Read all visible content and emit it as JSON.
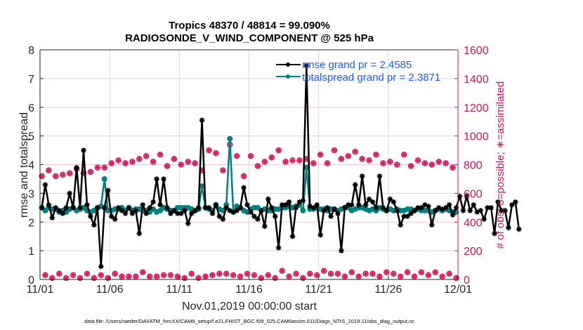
{
  "chart_data": {
    "type": "line",
    "title": "Tropics 48370 / 48814 = 99.090%",
    "subtitle": "RADIOSONDE_V_WIND_COMPONENT @ 525 hPa",
    "xlabel": "Nov.01,2019 00:00:00 start",
    "ylabel": "rmse and totalspread",
    "ylabel_right": "# of obs: o=possible; ∗=assimilated",
    "footnote": "data file: /Users/raeder/DAI/ATM_forcXX/CAM6_setup/f.e21.FHIST_BGC.f09_025.CAM6assim.011/Diags_NTrS_2019-11/obs_diag_output.nc",
    "x_tick_labels": [
      "11/01",
      "11/06",
      "11/11",
      "11/16",
      "11/21",
      "11/26",
      "12/01"
    ],
    "x_range_days": [
      0,
      30
    ],
    "bin_hours": 6,
    "ylim": [
      0,
      8
    ],
    "y_ticks": [
      0,
      1,
      2,
      3,
      4,
      5,
      6,
      7,
      8
    ],
    "ylim_right": [
      0,
      1600
    ],
    "y_ticks_right": [
      0,
      200,
      400,
      600,
      800,
      1000,
      1200,
      1400,
      1600
    ],
    "grid": true,
    "legend_position": "top-right",
    "legend": [
      {
        "label": "rmse grand pr = 2.4585",
        "color": "#000000"
      },
      {
        "label": "totalspread grand pr = 2.3871",
        "color": "#008080"
      }
    ],
    "colors": {
      "rmse": "#000000",
      "totalspread": "#008080",
      "obs": "#d4145a",
      "grid": "#f2c6d6",
      "vgrid": "#d9d9d9"
    },
    "series": [
      {
        "name": "rmse",
        "values": [
          2.5,
          3.3,
          2.6,
          2.15,
          2.5,
          2.4,
          2.3,
          2.5,
          3.0,
          2.5,
          3.9,
          2.5,
          4.5,
          2.6,
          2.2,
          1.9,
          2.5,
          0.45,
          2.5,
          3.1,
          2.2,
          2.1,
          2.5,
          2.4,
          2.3,
          2.5,
          2.3,
          2.4,
          1.6,
          2.6,
          2.3,
          2.5,
          2.7,
          3.5,
          2.6,
          3.5,
          2.5,
          2.3,
          2.4,
          2.3,
          2.3,
          2.4,
          1.95,
          2.3,
          2.4,
          2.5,
          5.55,
          2.5,
          2.5,
          2.3,
          2.6,
          2.2,
          2.1,
          2.5,
          2.4,
          2.35,
          2.4,
          2.5,
          3.2,
          2.6,
          2.35,
          2.2,
          2.1,
          2.4,
          1.85,
          2.8,
          2.5,
          2.2,
          1.1,
          2.6,
          2.6,
          2.7,
          1.5,
          2.5,
          2.7,
          2.75,
          7.45,
          2.55,
          2.5,
          2.6,
          1.55,
          2.4,
          2.5,
          2.2,
          2.45,
          2.3,
          1.0,
          2.5,
          2.6,
          2.6,
          3.3,
          2.6,
          3.6,
          2.6,
          2.8,
          2.7,
          2.5,
          3.6,
          2.5,
          2.4,
          2.8,
          2.7,
          2.4,
          1.9,
          2.2,
          2.2,
          2.3,
          2.4,
          2.5,
          2.5,
          2.6,
          2.55,
          1.9,
          2.4,
          2.5,
          2.45,
          2.5,
          2.6,
          2.25,
          2.5,
          2.9,
          2.4,
          2.9,
          2.4,
          2.6,
          2.35,
          2.4,
          2.1,
          2.5,
          2.5,
          1.6,
          2.7,
          2.4,
          2.4,
          1.8,
          2.6,
          2.7,
          1.75
        ],
        "note": "values estimated from the figure, 6-hourly bins"
      },
      {
        "name": "totalspread",
        "values": [
          2.5,
          2.4,
          2.5,
          2.45,
          2.45,
          2.35,
          2.4,
          2.35,
          2.45,
          2.5,
          2.4,
          2.45,
          2.5,
          2.4,
          2.35,
          2.4,
          2.5,
          2.55,
          3.5,
          2.4,
          2.4,
          2.45,
          2.45,
          2.5,
          2.4,
          2.5,
          2.4,
          2.45,
          2.45,
          2.4,
          2.4,
          2.35,
          2.45,
          2.35,
          2.4,
          2.5,
          2.45,
          2.4,
          2.4,
          2.5,
          2.5,
          2.5,
          2.5,
          2.45,
          2.4,
          2.45,
          3.25,
          2.5,
          2.45,
          2.4,
          2.6,
          2.45,
          2.4,
          2.6,
          4.9,
          2.35,
          2.55,
          2.5,
          2.4,
          2.35,
          2.45,
          2.5,
          2.5,
          2.4,
          2.45,
          2.4,
          2.4,
          2.45,
          2.45,
          2.5,
          2.5,
          2.55,
          2.5,
          2.55,
          2.6,
          2.4,
          3.9,
          2.45,
          2.45,
          2.5,
          2.45,
          2.45,
          2.4,
          2.45,
          2.45,
          2.4,
          2.45,
          2.5,
          2.5,
          2.4,
          2.45,
          2.5,
          2.5,
          2.45,
          2.4,
          2.45,
          2.4,
          2.5,
          2.45,
          2.4,
          2.45,
          2.4,
          2.45,
          2.4,
          2.4,
          2.45,
          2.45,
          2.4,
          2.45,
          2.4,
          2.4,
          2.4,
          2.35,
          2.4,
          2.45,
          2.4,
          2.45,
          2.4,
          2.35,
          2.35
        ],
        "note": "values estimated from the figure, 6-hourly bins"
      },
      {
        "name": "obs_possible_high",
        "axis": "right",
        "values": [
          720,
          760,
          720,
          730,
          740,
          770,
          740,
          750,
          780,
          780,
          810,
          830,
          810,
          820,
          840,
          860,
          820,
          870,
          790,
          840,
          800,
          820,
          810,
          760,
          900,
          880,
          760,
          940,
          860,
          720,
          860,
          790,
          820,
          850,
          900,
          820,
          830,
          830,
          840,
          810,
          870,
          810,
          900,
          840,
          860,
          890,
          840,
          830,
          870,
          810,
          820,
          800,
          870,
          790,
          830,
          810,
          800,
          820,
          810,
          780
        ],
        "note": "00Z/12Z bins, estimated"
      },
      {
        "name": "obs_possible_low",
        "axis": "right",
        "values": [
          30,
          10,
          40,
          10,
          30,
          10,
          40,
          10,
          30,
          10,
          40,
          20,
          20,
          20,
          50,
          20,
          20,
          30,
          30,
          20,
          10,
          40,
          10,
          20,
          30,
          40,
          40,
          30,
          20,
          40,
          30,
          10,
          30,
          10,
          60,
          20,
          40,
          10,
          40,
          30,
          60,
          40,
          40,
          20,
          50,
          20,
          40,
          40,
          20,
          50,
          40,
          20,
          50,
          20,
          50,
          30,
          50,
          20,
          40,
          10
        ],
        "note": "06Z/18Z bins, estimated"
      }
    ]
  }
}
